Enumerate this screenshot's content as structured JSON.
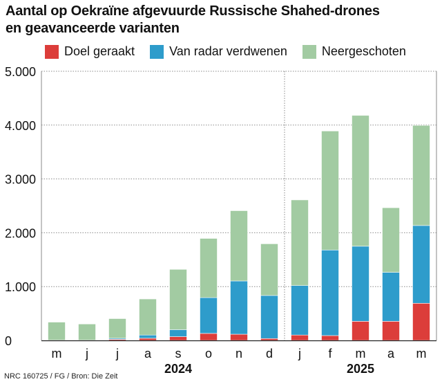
{
  "title_line1": "Aantal op Oekraïne afgevuurde Russische Shahed-drones",
  "title_line2": "en geavanceerde varianten",
  "source": "NRC 160725 / FG / Bron: Die Zeit",
  "colors": {
    "hit": "#dc3d3a",
    "radar": "#2e9ccb",
    "shot": "#a2cba2"
  },
  "chart_data": {
    "type": "bar",
    "stacked": true,
    "categories": [
      "m",
      "j",
      "j",
      "a",
      "s",
      "o",
      "n",
      "d",
      "j",
      "f",
      "m",
      "a",
      "m"
    ],
    "year_labels": [
      {
        "label": "2024",
        "center_index": 4
      },
      {
        "label": "2025",
        "center_index": 10
      }
    ],
    "series": [
      {
        "name": "Doel geraakt",
        "color": "#dc3d3a",
        "values": [
          5,
          5,
          20,
          40,
          70,
          130,
          115,
          35,
          100,
          90,
          355,
          355,
          690
        ]
      },
      {
        "name": "Van radar verdwenen",
        "color": "#2e9ccb",
        "values": [
          0,
          0,
          20,
          60,
          130,
          665,
          990,
          800,
          920,
          1590,
          1395,
          910,
          1445
        ]
      },
      {
        "name": "Neergeschoten",
        "color": "#a2cba2",
        "values": [
          335,
          300,
          365,
          670,
          1120,
          1100,
          1305,
          960,
          1590,
          2210,
          2430,
          1200,
          1860
        ]
      }
    ],
    "yticks": [
      0,
      1000,
      2000,
      3000,
      4000,
      5000
    ],
    "ytick_labels": [
      "0",
      "1.000",
      "2.000",
      "3.000",
      "4.000",
      "5.000"
    ],
    "ylim": [
      0,
      5000
    ],
    "grid": true,
    "year_separator_after_index": 7,
    "legend_placement": "top"
  }
}
